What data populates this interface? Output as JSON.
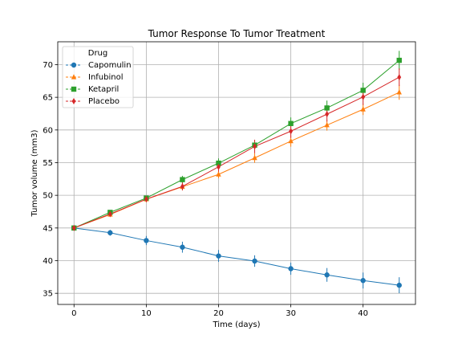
{
  "chart_data": {
    "type": "line",
    "title": "Tumor Response To Tumor Treatment",
    "xlabel": "Time (days)",
    "ylabel": "Tumor volume (mm3)",
    "xlim": [
      -2.25,
      47.25
    ],
    "ylim": [
      33.3,
      73.5
    ],
    "xticks": [
      0,
      10,
      20,
      30,
      40
    ],
    "yticks": [
      35,
      40,
      45,
      50,
      55,
      60,
      65,
      70
    ],
    "grid": true,
    "legend": {
      "title": "Drug",
      "placement": "top-left"
    },
    "x": [
      0,
      5,
      10,
      15,
      20,
      25,
      30,
      35,
      40,
      45
    ],
    "series": [
      {
        "name": "Capomulin",
        "color": "#1f77b4",
        "marker": "circle",
        "values": [
          45.0,
          44.27,
          43.08,
          42.06,
          40.72,
          39.94,
          38.77,
          37.82,
          36.96,
          36.24
        ],
        "errors": [
          0.0,
          0.45,
          0.7,
          0.84,
          0.91,
          0.88,
          0.93,
          1.05,
          1.22,
          1.22
        ]
      },
      {
        "name": "Infubinol",
        "color": "#ff7f0e",
        "marker": "triangle",
        "values": [
          45.0,
          47.06,
          49.4,
          51.3,
          53.2,
          55.72,
          58.3,
          60.74,
          63.16,
          65.76
        ],
        "errors": [
          0.0,
          0.24,
          0.48,
          0.55,
          0.58,
          0.74,
          0.86,
          0.84,
          0.87,
          1.14
        ]
      },
      {
        "name": "Ketapril",
        "color": "#2ca02c",
        "marker": "square",
        "values": [
          45.0,
          47.39,
          49.58,
          52.4,
          54.92,
          57.68,
          60.99,
          63.37,
          66.07,
          70.66
        ],
        "errors": [
          0.0,
          0.26,
          0.36,
          0.58,
          0.73,
          0.76,
          0.93,
          1.13,
          1.16,
          1.45
        ]
      },
      {
        "name": "Placebo",
        "color": "#d62728",
        "marker": "diamond",
        "values": [
          45.0,
          47.13,
          49.42,
          51.36,
          54.36,
          57.48,
          59.81,
          62.42,
          65.05,
          68.08
        ],
        "errors": [
          0.0,
          0.22,
          0.4,
          0.61,
          0.84,
          1.03,
          1.02,
          1.14,
          1.22,
          1.35
        ]
      }
    ]
  }
}
